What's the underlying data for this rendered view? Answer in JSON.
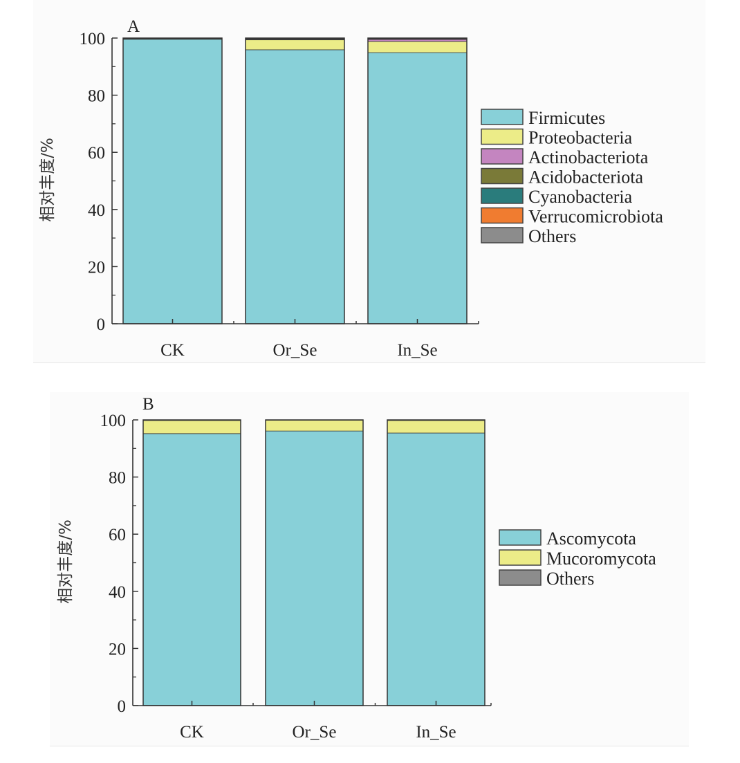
{
  "chart_data": [
    {
      "type": "bar",
      "stacked": true,
      "panel_label": "A",
      "title": "",
      "xlabel": "",
      "ylabel": "相对丰度/%",
      "ylim": [
        0,
        100
      ],
      "yticks": [
        0,
        20,
        40,
        60,
        80,
        100
      ],
      "categories": [
        "CK",
        "Or_Se",
        "In_Se"
      ],
      "legend_position": "right",
      "series": [
        {
          "name": "Firmicutes",
          "color": "#88d0d8",
          "values": [
            99.6,
            95.9,
            94.9
          ]
        },
        {
          "name": "Proteobacteria",
          "color": "#ecec88",
          "values": [
            0.1,
            3.5,
            3.9
          ]
        },
        {
          "name": "Actinobacteriota",
          "color": "#c485c0",
          "values": [
            0.05,
            0.1,
            0.7
          ]
        },
        {
          "name": "Acidobacteriota",
          "color": "#7a7a38",
          "values": [
            0.05,
            0.1,
            0.2
          ]
        },
        {
          "name": "Cyanobacteria",
          "color": "#2a7c7c",
          "values": [
            0.05,
            0.1,
            0.1
          ]
        },
        {
          "name": "Verrucomicrobiota",
          "color": "#f07c30",
          "values": [
            0.05,
            0.1,
            0.1
          ]
        },
        {
          "name": "Others",
          "color": "#8c8c8c",
          "values": [
            0.1,
            0.2,
            0.1
          ]
        }
      ]
    },
    {
      "type": "bar",
      "stacked": true,
      "panel_label": "B",
      "title": "",
      "xlabel": "",
      "ylabel": "相对丰度/%",
      "ylim": [
        0,
        100
      ],
      "yticks": [
        0,
        20,
        40,
        60,
        80,
        100
      ],
      "categories": [
        "CK",
        "Or_Se",
        "In_Se"
      ],
      "legend_position": "right",
      "series": [
        {
          "name": "Ascomycota",
          "color": "#88d0d8",
          "values": [
            95.2,
            96.1,
            95.4
          ]
        },
        {
          "name": "Mucoromycota",
          "color": "#ecec88",
          "values": [
            4.6,
            3.8,
            4.4
          ]
        },
        {
          "name": "Others",
          "color": "#8c8c8c",
          "values": [
            0.2,
            0.1,
            0.2
          ]
        }
      ]
    }
  ]
}
